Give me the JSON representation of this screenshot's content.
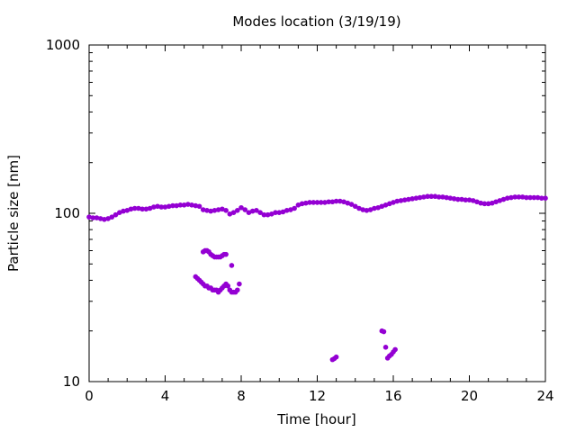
{
  "chart_data": {
    "type": "scatter",
    "title": "Modes location (3/19/19)",
    "xlabel": "Time [hour]",
    "ylabel": "Particle size [nm]",
    "xlim": [
      0,
      24
    ],
    "ylim": [
      10,
      1000
    ],
    "yscale": "log",
    "x_ticks": [
      0,
      4,
      8,
      12,
      16,
      20,
      24
    ],
    "x_tick_labels": [
      "0",
      "4",
      "8",
      "12",
      "16",
      "20",
      "24"
    ],
    "y_ticks": [
      10,
      100,
      1000
    ],
    "y_tick_labels": [
      "10",
      "100",
      "1000"
    ],
    "grid": false,
    "marker_color": "#9400D3",
    "series": [
      {
        "points": [
          [
            0.0,
            95
          ],
          [
            0.2,
            94
          ],
          [
            0.4,
            94
          ],
          [
            0.6,
            93
          ],
          [
            0.8,
            92
          ],
          [
            1.0,
            93
          ],
          [
            1.2,
            95
          ],
          [
            1.4,
            98
          ],
          [
            1.6,
            101
          ],
          [
            1.8,
            103
          ],
          [
            2.0,
            104
          ],
          [
            2.2,
            106
          ],
          [
            2.4,
            107
          ],
          [
            2.6,
            107
          ],
          [
            2.8,
            106
          ],
          [
            3.0,
            106
          ],
          [
            3.2,
            107
          ],
          [
            3.4,
            109
          ],
          [
            3.6,
            110
          ],
          [
            3.8,
            109
          ],
          [
            4.0,
            109
          ],
          [
            4.2,
            110
          ],
          [
            4.4,
            111
          ],
          [
            4.6,
            111
          ],
          [
            4.8,
            112
          ],
          [
            5.0,
            112
          ],
          [
            5.2,
            113
          ],
          [
            5.4,
            112
          ],
          [
            5.6,
            111
          ],
          [
            5.8,
            110
          ],
          [
            6.0,
            105
          ],
          [
            6.2,
            104
          ],
          [
            6.4,
            103
          ],
          [
            6.6,
            104
          ],
          [
            6.8,
            105
          ],
          [
            7.0,
            106
          ],
          [
            7.2,
            104
          ],
          [
            7.4,
            99
          ],
          [
            7.6,
            101
          ],
          [
            7.8,
            104
          ],
          [
            8.0,
            108
          ],
          [
            8.2,
            105
          ],
          [
            8.4,
            101
          ],
          [
            8.6,
            103
          ],
          [
            8.8,
            104
          ],
          [
            9.0,
            101
          ],
          [
            9.2,
            98
          ],
          [
            9.4,
            98
          ],
          [
            9.6,
            99
          ],
          [
            9.8,
            101
          ],
          [
            10.0,
            101
          ],
          [
            10.2,
            102
          ],
          [
            10.4,
            104
          ],
          [
            10.6,
            105
          ],
          [
            10.8,
            107
          ],
          [
            11.0,
            112
          ],
          [
            11.2,
            114
          ],
          [
            11.4,
            115
          ],
          [
            11.6,
            116
          ],
          [
            11.8,
            116
          ],
          [
            12.0,
            116
          ],
          [
            12.2,
            116
          ],
          [
            12.4,
            116
          ],
          [
            12.6,
            117
          ],
          [
            12.8,
            117
          ],
          [
            13.0,
            118
          ],
          [
            13.2,
            118
          ],
          [
            13.4,
            117
          ],
          [
            13.6,
            115
          ],
          [
            13.8,
            113
          ],
          [
            14.0,
            110
          ],
          [
            14.2,
            107
          ],
          [
            14.4,
            105
          ],
          [
            14.6,
            104
          ],
          [
            14.8,
            105
          ],
          [
            15.0,
            107
          ],
          [
            15.2,
            108
          ],
          [
            15.4,
            110
          ],
          [
            15.6,
            112
          ],
          [
            15.8,
            114
          ],
          [
            16.0,
            116
          ],
          [
            16.2,
            118
          ],
          [
            16.4,
            119
          ],
          [
            16.6,
            120
          ],
          [
            16.8,
            121
          ],
          [
            17.0,
            122
          ],
          [
            17.2,
            123
          ],
          [
            17.4,
            124
          ],
          [
            17.6,
            125
          ],
          [
            17.8,
            126
          ],
          [
            18.0,
            126
          ],
          [
            18.2,
            126
          ],
          [
            18.4,
            125
          ],
          [
            18.6,
            125
          ],
          [
            18.8,
            124
          ],
          [
            19.0,
            123
          ],
          [
            19.2,
            122
          ],
          [
            19.4,
            121
          ],
          [
            19.6,
            121
          ],
          [
            19.8,
            120
          ],
          [
            20.0,
            120
          ],
          [
            20.2,
            119
          ],
          [
            20.4,
            117
          ],
          [
            20.6,
            115
          ],
          [
            20.8,
            114
          ],
          [
            21.0,
            114
          ],
          [
            21.2,
            115
          ],
          [
            21.4,
            117
          ],
          [
            21.6,
            119
          ],
          [
            21.8,
            121
          ],
          [
            22.0,
            123
          ],
          [
            22.2,
            124
          ],
          [
            22.4,
            125
          ],
          [
            22.6,
            125
          ],
          [
            22.8,
            125
          ],
          [
            23.0,
            124
          ],
          [
            23.2,
            124
          ],
          [
            23.4,
            124
          ],
          [
            23.6,
            124
          ],
          [
            23.8,
            123
          ],
          [
            24.0,
            123
          ],
          [
            6.0,
            59
          ],
          [
            6.1,
            60
          ],
          [
            6.2,
            60
          ],
          [
            6.3,
            59
          ],
          [
            6.4,
            57
          ],
          [
            6.5,
            56
          ],
          [
            6.6,
            55
          ],
          [
            6.7,
            55
          ],
          [
            6.8,
            55
          ],
          [
            6.9,
            55
          ],
          [
            7.0,
            56
          ],
          [
            7.1,
            57
          ],
          [
            7.2,
            57
          ],
          [
            7.5,
            49
          ],
          [
            5.6,
            42
          ],
          [
            5.7,
            41
          ],
          [
            5.8,
            40
          ],
          [
            5.9,
            39
          ],
          [
            6.0,
            38
          ],
          [
            6.1,
            37
          ],
          [
            6.2,
            37
          ],
          [
            6.3,
            36
          ],
          [
            6.4,
            36
          ],
          [
            6.5,
            35
          ],
          [
            6.6,
            35
          ],
          [
            6.7,
            35
          ],
          [
            6.8,
            34
          ],
          [
            6.9,
            35
          ],
          [
            7.0,
            36
          ],
          [
            7.1,
            37
          ],
          [
            7.2,
            38
          ],
          [
            7.3,
            37
          ],
          [
            7.4,
            35
          ],
          [
            7.5,
            34
          ],
          [
            7.6,
            34
          ],
          [
            7.7,
            34
          ],
          [
            7.8,
            35
          ],
          [
            7.9,
            38
          ],
          [
            12.8,
            13.5
          ],
          [
            12.9,
            13.7
          ],
          [
            13.0,
            14.0
          ],
          [
            15.4,
            20
          ],
          [
            15.5,
            19.8
          ],
          [
            15.6,
            16
          ],
          [
            15.7,
            13.8
          ],
          [
            15.8,
            14.2
          ],
          [
            15.9,
            14.5
          ],
          [
            16.0,
            15.0
          ],
          [
            16.1,
            15.5
          ]
        ]
      }
    ]
  }
}
